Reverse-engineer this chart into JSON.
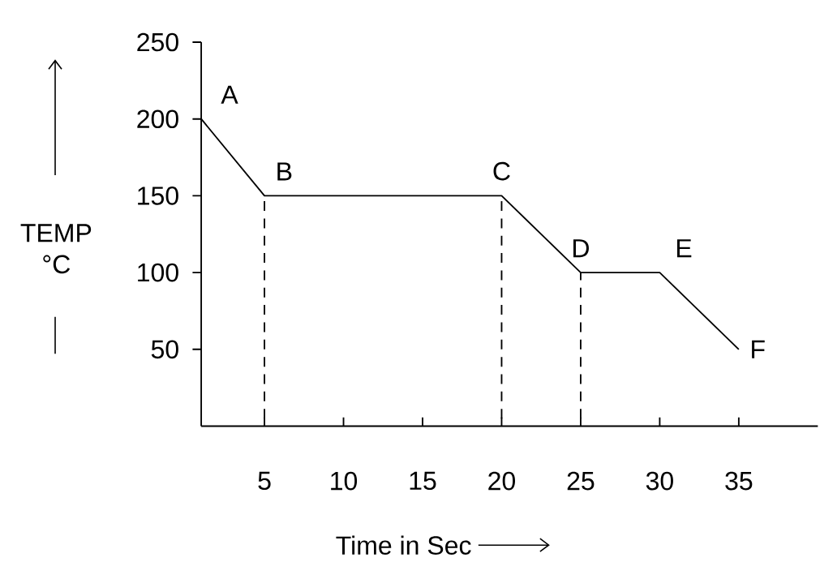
{
  "chart_data": {
    "type": "line",
    "xlabel": "Time in Sec",
    "ylabel": "TEMP °C",
    "xlim": [
      1,
      40
    ],
    "ylim": [
      0,
      250
    ],
    "xticks": [
      5,
      10,
      15,
      20,
      25,
      30,
      35
    ],
    "yticks": [
      50,
      100,
      150,
      200,
      250
    ],
    "marker": "none",
    "series": [
      {
        "color": "#000000",
        "line_style": "solid",
        "x": [
          1,
          5,
          20,
          25,
          30,
          35
        ],
        "values": [
          200,
          150,
          150,
          100,
          100,
          50
        ]
      },
      {
        "color": "#000000",
        "line_style": "dashed",
        "x": [
          5,
          5
        ],
        "values": [
          0,
          150
        ]
      },
      {
        "color": "#000000",
        "line_style": "dashed",
        "x": [
          20,
          20
        ],
        "values": [
          0,
          150
        ]
      },
      {
        "color": "#000000",
        "line_style": "dashed",
        "x": [
          25,
          25
        ],
        "values": [
          0,
          100
        ]
      }
    ],
    "annotations": [
      {
        "text": "A",
        "x": 1,
        "y": 200
      },
      {
        "text": "B",
        "x": 5,
        "y": 150
      },
      {
        "text": "C",
        "x": 20,
        "y": 150
      },
      {
        "text": "D",
        "x": 25,
        "y": 100
      },
      {
        "text": "E",
        "x": 30,
        "y": 100
      },
      {
        "text": "F",
        "x": 35,
        "y": 50
      }
    ]
  }
}
